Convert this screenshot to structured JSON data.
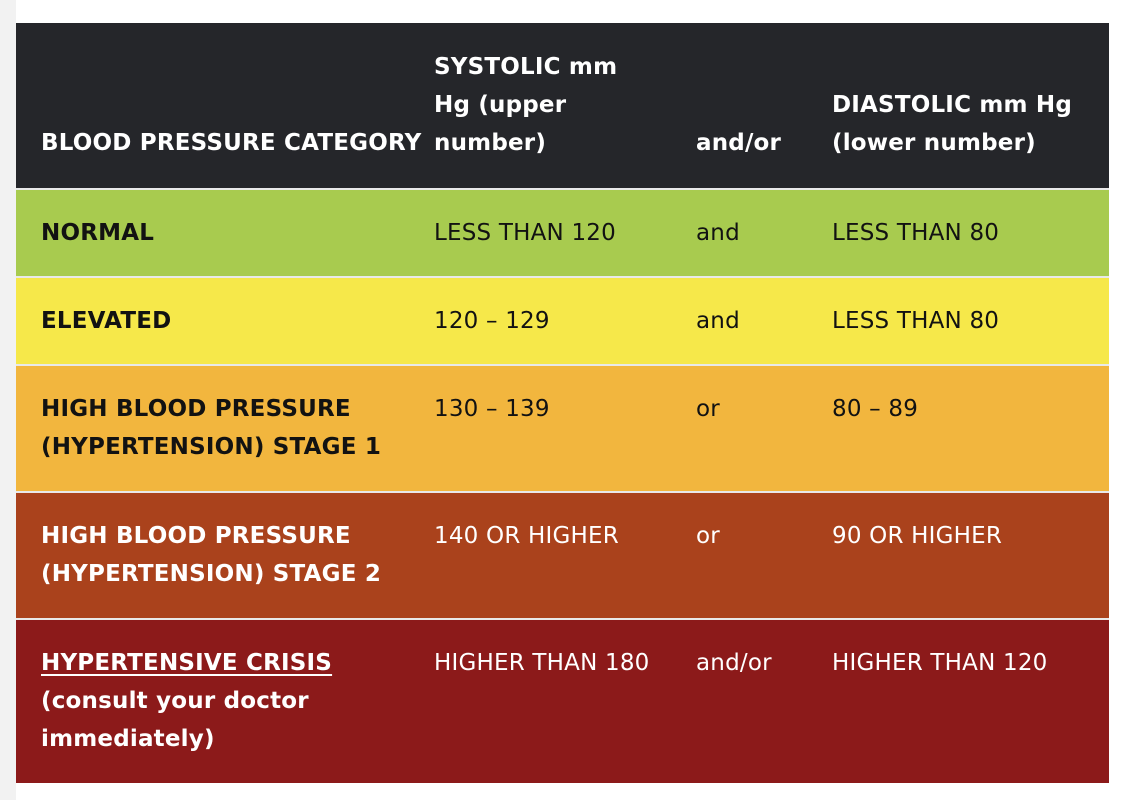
{
  "header": {
    "category": "BLOOD PRESSURE CATEGORY",
    "systolic": "SYSTOLIC mm Hg (upper number)",
    "andor": "and/or",
    "diastolic": "DIASTOLIC mm Hg (lower number)"
  },
  "rows": [
    {
      "category": "NORMAL",
      "systolic": "LESS THAN 120",
      "andor": "and",
      "diastolic": "LESS THAN 80",
      "color": "#a8cb4f"
    },
    {
      "category": "ELEVATED",
      "systolic": "120 – 129",
      "andor": "and",
      "diastolic": "LESS THAN 80",
      "color": "#f6e84a"
    },
    {
      "category": "HIGH BLOOD PRESSURE (HYPERTENSION) STAGE 1",
      "systolic": "130 – 139",
      "andor": "or",
      "diastolic": "80 – 89",
      "color": "#f2b63e"
    },
    {
      "category": "HIGH BLOOD PRESSURE (HYPERTENSION) STAGE 2",
      "systolic": "140 OR HIGHER",
      "andor": "or",
      "diastolic": "90 OR HIGHER",
      "color": "#aa421c"
    },
    {
      "category": "HYPERTENSIVE CRISIS",
      "category_note": "(consult your doctor immediately)",
      "systolic": "HIGHER THAN 180",
      "andor": "and/or",
      "diastolic": "HIGHER THAN 120",
      "color": "#8c1a1a"
    }
  ],
  "colors": {
    "header_bg": "#25262a"
  }
}
